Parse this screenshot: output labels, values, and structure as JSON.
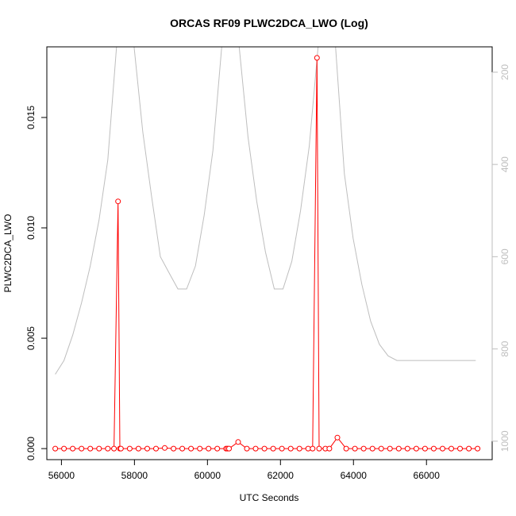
{
  "chart_data": {
    "type": "line",
    "title": "ORCAS RF09 PLWC2DCA_LWO (Log)",
    "xlabel": "UTC Seconds",
    "ylabel": "PLWC2DCA_LWO",
    "xlim": [
      55600,
      67800
    ],
    "ylim": [
      -0.0005,
      0.0182
    ],
    "x_ticks": [
      56000,
      58000,
      60000,
      62000,
      64000,
      66000
    ],
    "x_tick_labels": [
      "56000",
      "58000",
      "60000",
      "62000",
      "64000",
      "66000"
    ],
    "y_ticks": [
      0.0,
      0.005,
      0.01,
      0.015
    ],
    "y_tick_labels": [
      "0.000",
      "0.005",
      "0.010",
      "0.015"
    ],
    "y2_ticks": [
      200,
      400,
      600,
      800,
      1000
    ],
    "y2_tick_labels": [
      "200",
      "400",
      "600",
      "800",
      "1000"
    ],
    "y2lim": [
      1040,
      145
    ],
    "grid": false,
    "colors": {
      "series": "#ff0000",
      "secondary": "#bebebe",
      "axis": "#000000",
      "axis2": "#bebebe"
    },
    "series": [
      {
        "x": [
          55830,
          56070,
          56310,
          56550,
          56790,
          57030,
          57270,
          57440,
          57550,
          57600,
          57630,
          57870,
          58110,
          58350,
          58590,
          58830,
          59070,
          59310,
          59550,
          59790,
          60030,
          60270,
          60510,
          60550,
          60590,
          60840,
          61080,
          61320,
          61560,
          61800,
          62040,
          62280,
          62520,
          62760,
          62880,
          63000,
          63060,
          63230,
          63340,
          63560,
          63800,
          64040,
          64280,
          64520,
          64760,
          65000,
          65240,
          65480,
          65720,
          65960,
          66200,
          66440,
          66680,
          66920,
          67160,
          67400
        ],
        "y": [
          0,
          0,
          0,
          0,
          0,
          0,
          0,
          0,
          0.0112,
          0,
          0,
          0,
          0,
          0,
          0,
          3e-05,
          0,
          0,
          0,
          0,
          0,
          0,
          0,
          0,
          0,
          0.0003,
          0,
          0,
          0,
          0,
          0,
          0,
          0,
          0,
          0,
          0.0177,
          0,
          0,
          0,
          0.0005,
          0,
          0,
          0,
          0,
          0,
          0,
          0,
          0,
          0,
          0,
          0,
          0,
          0,
          0,
          0,
          0
        ]
      },
      {
        "axis": "right",
        "x": [
          55830,
          56070,
          56310,
          56550,
          56790,
          57030,
          57270,
          57510,
          57750,
          57990,
          58230,
          58470,
          58710,
          58950,
          59190,
          59430,
          59670,
          59910,
          60150,
          60390,
          60630,
          60870,
          61110,
          61350,
          61590,
          61830,
          62070,
          62310,
          62550,
          62790,
          63030,
          63270,
          63510,
          63750,
          63990,
          64230,
          64470,
          64710,
          64950,
          65190,
          65430,
          65670,
          65910,
          66150,
          66390,
          66630,
          66870,
          67110,
          67350
        ],
        "y": [
          855,
          825,
          770,
          700,
          620,
          520,
          390,
          145,
          145,
          145,
          330,
          470,
          600,
          635,
          670,
          670,
          620,
          510,
          370,
          145,
          145,
          145,
          340,
          480,
          590,
          670,
          670,
          610,
          500,
          360,
          145,
          145,
          145,
          420,
          560,
          660,
          740,
          790,
          815,
          825,
          825,
          825,
          825,
          825,
          825,
          825,
          825,
          825,
          825
        ]
      }
    ]
  }
}
